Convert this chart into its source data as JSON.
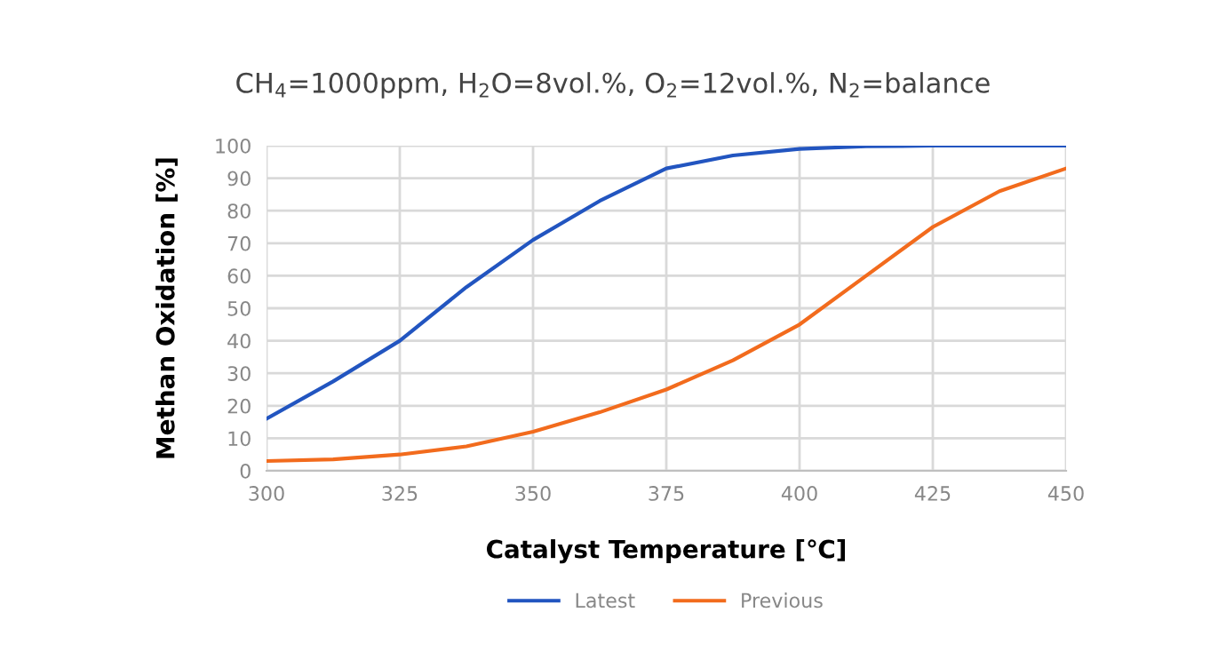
{
  "chart_data": {
    "type": "line",
    "title": "CH$_{4}$=1000ppm, H$_{2}$O=8vol.%, O$_{2}$=12vol.%, N$_{2}$=balance",
    "xlabel": "Catalyst Temperature [℃]",
    "ylabel": "Methan Oxidation [%]",
    "x": [
      300,
      312.5,
      325,
      337.5,
      350,
      362.5,
      375,
      387.5,
      400,
      412.5,
      425,
      437.5,
      450
    ],
    "series": [
      {
        "name": "Latest",
        "color": "#2255c0",
        "values": [
          16,
          27.5,
          40,
          56.5,
          71,
          83,
          93,
          97,
          99,
          99.8,
          100,
          100,
          100
        ]
      },
      {
        "name": "Previous",
        "color": "#f26b1d",
        "values": [
          3,
          3.5,
          5,
          7.5,
          12,
          18,
          25,
          34,
          45,
          60,
          75,
          86,
          93
        ]
      }
    ],
    "xlim": [
      300,
      450
    ],
    "xticks": [
      300,
      325,
      350,
      375,
      400,
      425,
      450
    ],
    "ylim": [
      0,
      100
    ],
    "yticks": [
      0,
      10,
      20,
      30,
      40,
      50,
      60,
      70,
      80,
      90,
      100
    ],
    "grid": true,
    "legend": "bottom",
    "marker": "none",
    "line_style": "solid"
  }
}
